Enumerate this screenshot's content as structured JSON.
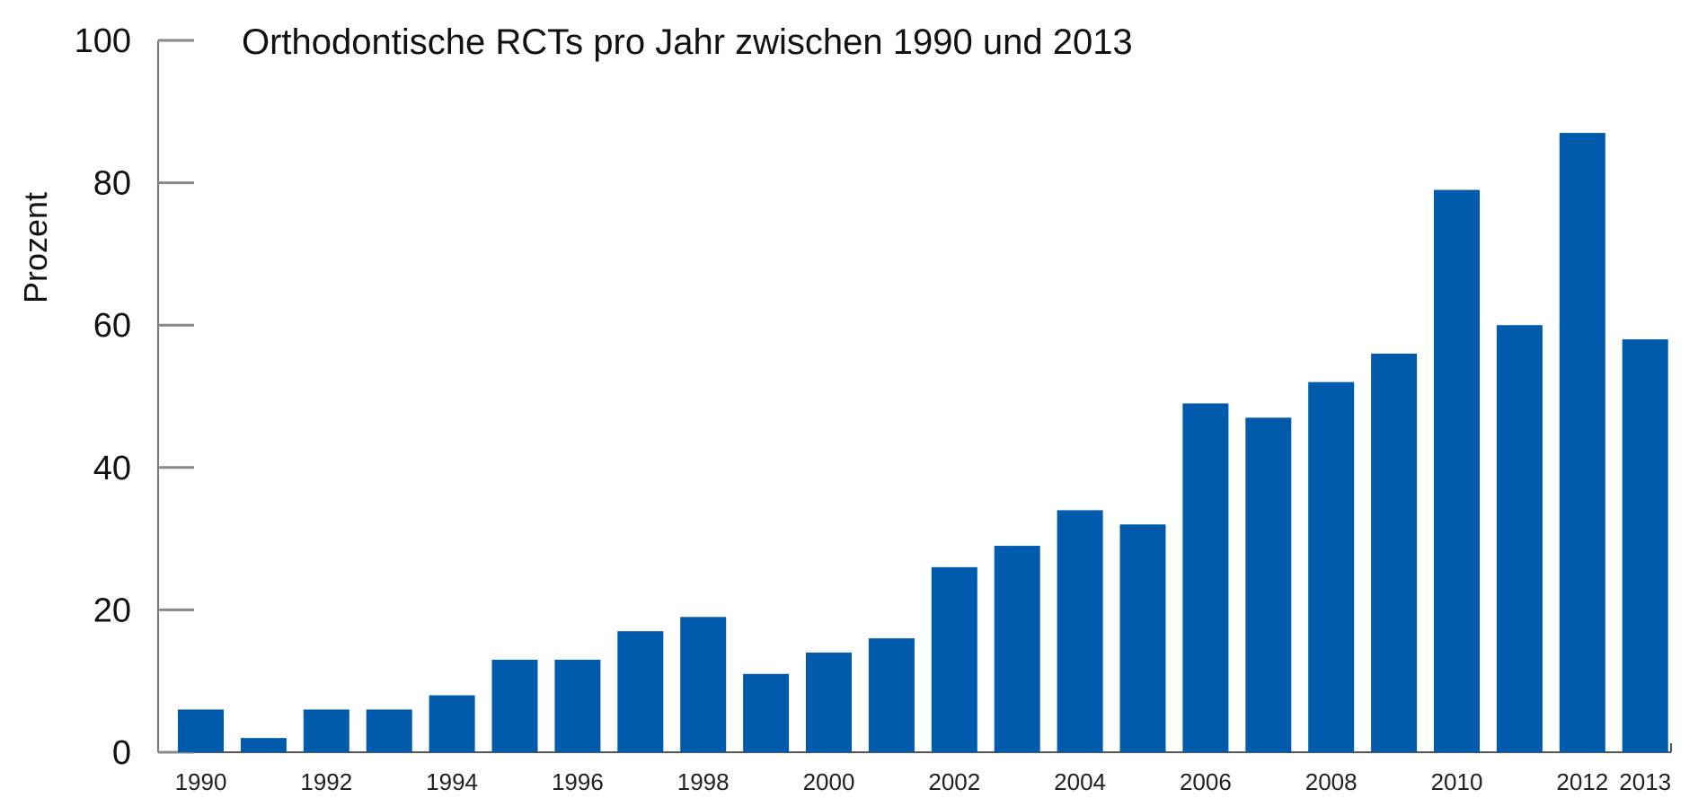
{
  "chart_data": {
    "type": "bar",
    "title": "Orthodontische RCTs pro Jahr zwischen 1990 und 2013",
    "xlabel": "",
    "ylabel": "Prozent",
    "ylim": [
      0,
      100
    ],
    "yticks": [
      0,
      20,
      40,
      60,
      80,
      100
    ],
    "grid": false,
    "bar_color": "#005BAC",
    "categories": [
      "1990",
      "1991",
      "1992",
      "1993",
      "1994",
      "1995",
      "1996",
      "1997",
      "1998",
      "1999",
      "2000",
      "2001",
      "2002",
      "2003",
      "2004",
      "2005",
      "2006",
      "2007",
      "2008",
      "2009",
      "2010",
      "2011",
      "2012",
      "2013"
    ],
    "xtick_labels": [
      "1990",
      "",
      "1992",
      "",
      "1994",
      "",
      "1996",
      "",
      "1998",
      "",
      "2000",
      "",
      "2002",
      "",
      "2004",
      "",
      "2006",
      "",
      "2008",
      "",
      "2010",
      "",
      "2012",
      "2013"
    ],
    "values": [
      6,
      2,
      6,
      6,
      8,
      13,
      13,
      17,
      19,
      11,
      14,
      16,
      26,
      29,
      34,
      32,
      49,
      47,
      52,
      56,
      79,
      60,
      87,
      58
    ]
  }
}
